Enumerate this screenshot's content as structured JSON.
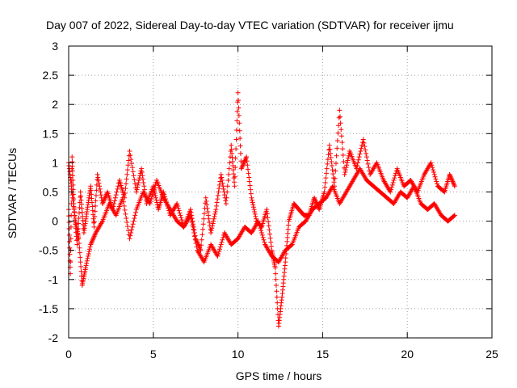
{
  "chart_data": {
    "type": "scatter",
    "title": "Day 007 of 2022, Sidereal Day-to-day VTEC variation (SDTVAR) for receiver ijmu",
    "xlabel": "GPS time / hours",
    "ylabel": "SDTVAR / TECUs",
    "xlim": [
      0,
      25
    ],
    "ylim": [
      -2,
      3
    ],
    "x_ticks": [
      0,
      5,
      10,
      15,
      20,
      25
    ],
    "x_tick_labels": [
      "0",
      "5",
      "10",
      "15",
      "20",
      "25"
    ],
    "y_ticks": [
      -2,
      -1.5,
      -1,
      -0.5,
      0,
      0.5,
      1,
      1.5,
      2,
      2.5,
      3
    ],
    "y_tick_labels": [
      "-2",
      "-1.5",
      "-1",
      "-0.5",
      "0",
      "0.5",
      "1",
      "1.5",
      "2",
      "2.5",
      "3"
    ],
    "grid": true,
    "marker": "+",
    "series": [
      {
        "name": "SDTVAR",
        "color": "#ff0000",
        "x": [
          0.0,
          0.1,
          0.2,
          0.3,
          0.5,
          0.7,
          0.9,
          1.1,
          1.3,
          1.5,
          1.7,
          2.0,
          2.3,
          2.6,
          3.0,
          3.3,
          3.6,
          4.0,
          4.3,
          4.6,
          5.0,
          5.3,
          5.6,
          6.0,
          6.4,
          6.8,
          7.2,
          7.5,
          7.8,
          8.1,
          8.4,
          8.7,
          9.0,
          9.3,
          9.6,
          9.8,
          10.0,
          10.2,
          10.5,
          10.8,
          11.1,
          11.4,
          11.7,
          12.0,
          12.2,
          12.4,
          12.6,
          12.8,
          13.0,
          13.3,
          13.6,
          13.9,
          14.2,
          14.5,
          14.8,
          15.1,
          15.4,
          15.7,
          16.0,
          16.3,
          16.6,
          17.0,
          17.4,
          17.8,
          18.2,
          18.6,
          19.0,
          19.4,
          19.8,
          20.2,
          20.6,
          21.0,
          21.4,
          21.8,
          22.2,
          22.5,
          22.8
        ],
        "y": [
          0.2,
          -0.9,
          1.1,
          0.3,
          -0.4,
          0.5,
          -0.2,
          0.2,
          0.6,
          -0.1,
          0.8,
          0.3,
          0.5,
          0.2,
          0.7,
          0.4,
          1.2,
          0.5,
          0.9,
          0.3,
          0.6,
          0.2,
          0.5,
          0.1,
          0.3,
          -0.1,
          0.2,
          -0.3,
          -0.5,
          0.4,
          -0.2,
          0.2,
          0.8,
          0.3,
          1.3,
          0.6,
          2.2,
          0.9,
          1.1,
          0.4,
          0.0,
          -0.1,
          0.2,
          -0.5,
          -0.8,
          -1.8,
          -1.3,
          -0.7,
          0.0,
          0.3,
          0.2,
          0.1,
          0.1,
          0.4,
          0.2,
          0.5,
          1.3,
          0.6,
          1.9,
          0.8,
          1.2,
          0.9,
          1.4,
          0.8,
          1.0,
          0.7,
          0.5,
          0.9,
          0.6,
          0.7,
          0.5,
          0.8,
          1.0,
          0.6,
          0.5,
          0.8,
          0.6
        ]
      },
      {
        "name": "SDTVAR",
        "color": "#ff0000",
        "x": [
          0.0,
          0.2,
          0.4,
          0.6,
          0.8,
          1.0,
          1.3,
          1.6,
          2.0,
          2.4,
          2.8,
          3.2,
          3.6,
          4.0,
          4.4,
          4.8,
          5.2,
          5.6,
          6.0,
          6.4,
          6.8,
          7.2,
          7.6,
          8.0,
          8.4,
          8.8,
          9.2,
          9.6,
          10.0,
          10.4,
          10.8,
          11.2,
          11.6,
          12.0,
          12.4,
          12.8,
          13.2,
          13.6,
          14.0,
          14.4,
          14.8,
          15.2,
          15.6,
          16.0,
          16.4,
          16.8,
          17.2,
          17.6,
          18.0,
          18.4,
          18.8,
          19.2,
          19.6,
          20.0,
          20.4,
          20.8,
          21.2,
          21.6,
          22.0,
          22.4,
          22.8
        ],
        "y": [
          1.0,
          0.5,
          0.0,
          -0.3,
          -1.1,
          -0.8,
          -0.4,
          -0.2,
          0.0,
          0.3,
          0.1,
          0.4,
          -0.3,
          0.2,
          0.5,
          0.3,
          0.7,
          0.4,
          0.2,
          0.0,
          -0.1,
          0.1,
          -0.5,
          -0.7,
          -0.4,
          -0.6,
          -0.2,
          -0.4,
          -0.3,
          -0.1,
          -0.2,
          0.0,
          -0.4,
          -0.6,
          -0.7,
          -0.5,
          -0.4,
          -0.1,
          0.0,
          0.2,
          0.3,
          0.4,
          0.6,
          0.3,
          0.5,
          0.7,
          0.9,
          0.7,
          0.6,
          0.5,
          0.4,
          0.3,
          0.5,
          0.4,
          0.6,
          0.3,
          0.2,
          0.3,
          0.1,
          0.0,
          0.1
        ]
      }
    ]
  }
}
